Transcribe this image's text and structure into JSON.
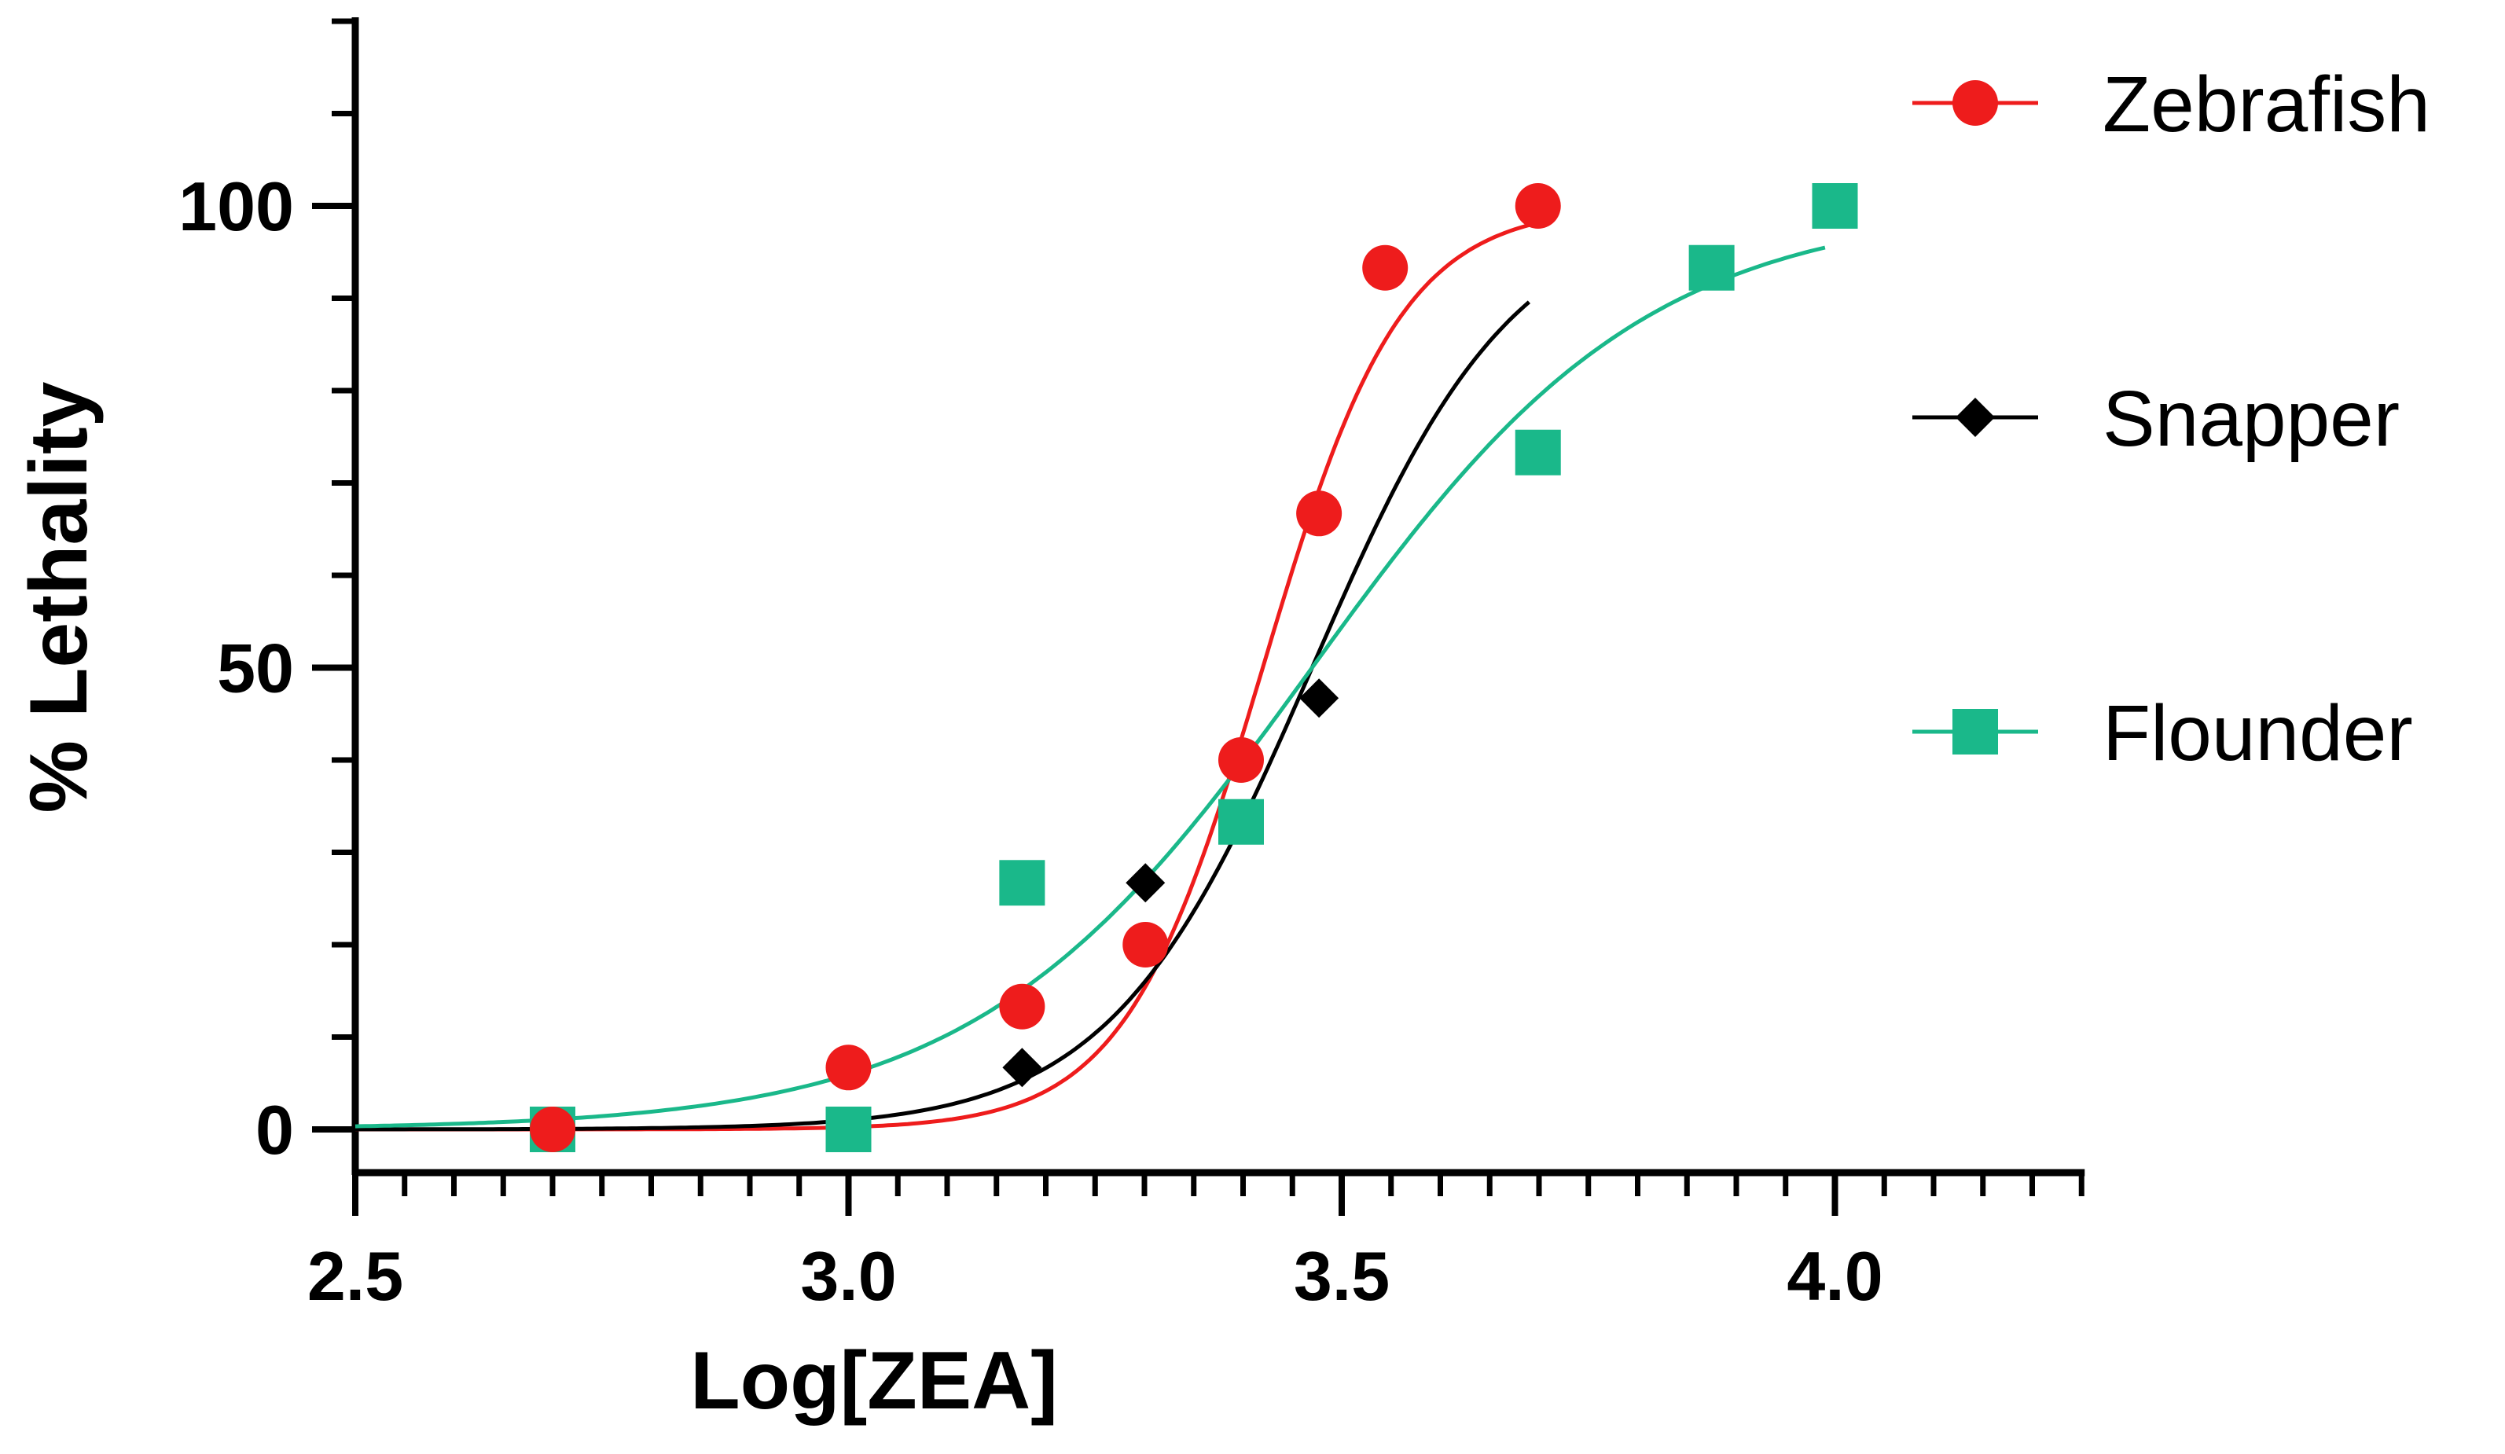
{
  "chart_data": {
    "type": "scatter",
    "title": "",
    "xlabel": "Log[ZEA]",
    "ylabel": "% Lethality",
    "xlim": [
      2.5,
      4.25
    ],
    "ylim": [
      -5,
      120
    ],
    "x_ticks": [
      2.5,
      3.0,
      3.5,
      4.0
    ],
    "x_tick_labels": [
      "2.5",
      "3.0",
      "3.5",
      "4.0"
    ],
    "x_minor_step": 0.05,
    "y_ticks": [
      0,
      50,
      100
    ],
    "y_tick_labels": [
      "0",
      "50",
      "100"
    ],
    "y_minor_step": 10,
    "grid": false,
    "legend_position": "right",
    "series": [
      {
        "name": "Zebrafish",
        "color": "#ee1c1c",
        "marker": "circle",
        "points": [
          [
            2.7,
            0
          ],
          [
            3.0,
            6.7
          ],
          [
            3.176,
            13.3
          ],
          [
            3.301,
            20
          ],
          [
            3.398,
            40
          ],
          [
            3.477,
            66.7
          ],
          [
            3.544,
            93.3
          ],
          [
            3.699,
            100
          ]
        ],
        "fit": {
          "bottom": 0,
          "top": 100,
          "logEC50": 3.42,
          "hill": 6.2,
          "xmin": 2.5,
          "xmax": 3.699
        }
      },
      {
        "name": "Snapper",
        "color": "#000000",
        "marker": "diamond",
        "points": [
          [
            3.176,
            6.7
          ],
          [
            3.301,
            26.7
          ],
          [
            3.477,
            46.7
          ]
        ],
        "fit": {
          "bottom": 0,
          "top": 100,
          "logEC50": 3.47,
          "hill": 4.25,
          "xmin": 2.5,
          "xmax": 3.69
        }
      },
      {
        "name": "Flounder",
        "color": "#1ab88a",
        "marker": "square",
        "points": [
          [
            2.7,
            0
          ],
          [
            3.0,
            0
          ],
          [
            3.176,
            26.7
          ],
          [
            3.398,
            33.3
          ],
          [
            3.699,
            73.3
          ],
          [
            3.875,
            93.3
          ],
          [
            4.0,
            100
          ]
        ],
        "fit": {
          "bottom": 0,
          "top": 100,
          "logEC50": 3.47,
          "hill": 2.55,
          "xmin": 2.5,
          "xmax": 3.99
        }
      }
    ]
  }
}
